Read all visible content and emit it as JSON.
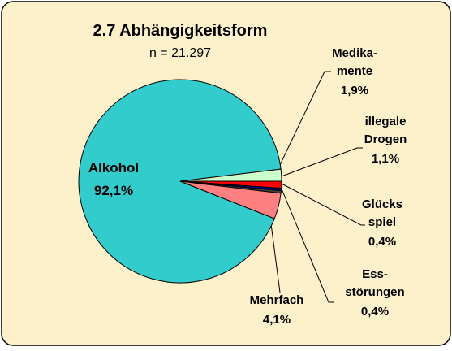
{
  "chart_data": {
    "type": "pie",
    "title": "2.7  Abhängigkeitsform",
    "subtitle": "n = 21.297",
    "categories": [
      "Alkohol",
      "Medika-\nmente",
      "illegale\nDrogen",
      "Glücks\nspiel",
      "Ess-\nstörungen",
      "Mehrfach"
    ],
    "values": [
      92.1,
      1.9,
      1.1,
      0.4,
      0.4,
      4.1
    ],
    "value_labels": [
      "92,1%",
      "1,9%",
      "1,1%",
      "0,4%",
      "0,4%",
      "4,1%"
    ],
    "colors": [
      "#33cccc",
      "#ccffcc",
      "#ff0000",
      "#000080",
      "#404040",
      "#ff8080"
    ]
  }
}
